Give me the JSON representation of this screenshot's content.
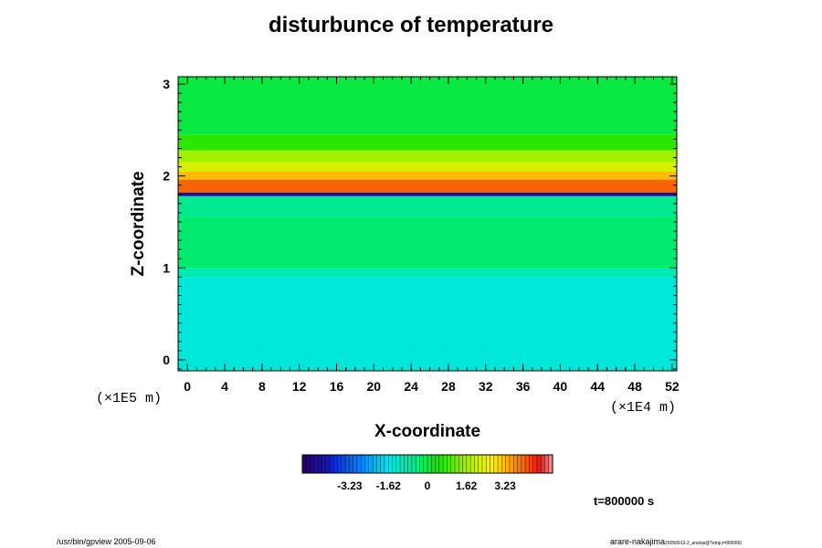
{
  "chart_data": {
    "type": "heatmap",
    "title": "disturbunce of temperature",
    "xlabel": "X-coordinate",
    "ylabel": "Z-coordinate",
    "x_unit": "(×1E4 m)",
    "y_unit": "(×1E5 m)",
    "xlim": [
      -1,
      52.5
    ],
    "ylim": [
      -0.12,
      3.08
    ],
    "x_ticks": [
      0,
      4,
      8,
      12,
      16,
      20,
      24,
      28,
      32,
      36,
      40,
      44,
      48,
      52
    ],
    "y_ticks": [
      0,
      1,
      2,
      3
    ],
    "colorbar": {
      "range": [
        -5.2,
        5.2
      ],
      "tick_values": [
        -3.23,
        -1.62,
        0,
        1.62,
        3.23
      ],
      "tick_labels": [
        "-3.23",
        "-1.62",
        "0",
        "1.62",
        "3.23"
      ]
    },
    "field_layers": [
      {
        "z_top": 3.08,
        "z_bottom": 2.45,
        "value": 0.0
      },
      {
        "z_top": 2.45,
        "z_bottom": 2.28,
        "value": 0.6
      },
      {
        "z_top": 2.28,
        "z_bottom": 2.15,
        "value": 1.6
      },
      {
        "z_top": 2.15,
        "z_bottom": 2.05,
        "value": 2.2
      },
      {
        "z_top": 2.05,
        "z_bottom": 1.96,
        "value": 3.2
      },
      {
        "z_top": 1.96,
        "z_bottom": 1.82,
        "value": 4.0
      },
      {
        "z_top": 1.82,
        "z_bottom": 1.78,
        "value": -4.5
      },
      {
        "z_top": 1.78,
        "z_bottom": 1.55,
        "value": -0.6
      },
      {
        "z_top": 1.55,
        "z_bottom": 1.0,
        "value": -0.3
      },
      {
        "z_top": 1.0,
        "z_bottom": 0.9,
        "value": -1.0
      },
      {
        "z_top": 0.9,
        "z_bottom": -0.12,
        "value": -1.4
      }
    ]
  },
  "time_label": "t=800000 s",
  "footer_left": "/usr/bin/gpview 2005-09-06",
  "footer_right": "arare-nakajima",
  "footer_right_small": "20050913-2_anelas@Temp,t=800000"
}
